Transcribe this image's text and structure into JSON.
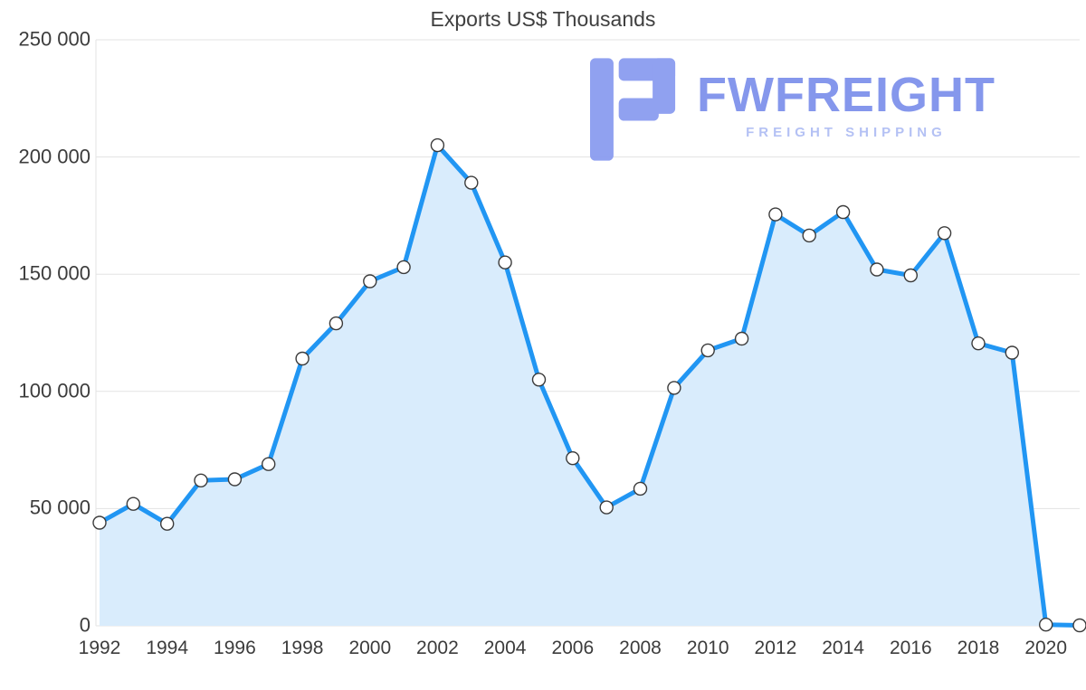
{
  "chart_data": {
    "type": "area",
    "title": "Exports US$ Thousands",
    "series_name": "Exports US$ Thousands",
    "x": [
      1992,
      1993,
      1994,
      1995,
      1996,
      1997,
      1998,
      1999,
      2000,
      2001,
      2002,
      2003,
      2004,
      2005,
      2006,
      2007,
      2008,
      2009,
      2010,
      2011,
      2012,
      2013,
      2014,
      2015,
      2016,
      2017,
      2018,
      2019,
      2020,
      2021
    ],
    "values": [
      44000,
      52000,
      43500,
      62000,
      62500,
      69000,
      114000,
      129000,
      147000,
      153000,
      205000,
      189000,
      155000,
      105000,
      71500,
      50500,
      58500,
      101500,
      117500,
      122500,
      175500,
      166500,
      176500,
      152000,
      149500,
      167500,
      120500,
      116500,
      500,
      200
    ],
    "ylim": [
      0,
      250000
    ],
    "ytick_step": 50000,
    "ytick_labels": [
      "0",
      "50 000",
      "100 000",
      "150 000",
      "200 000",
      "250 000"
    ],
    "xtick_labels": [
      "1992",
      "1994",
      "1996",
      "1998",
      "2000",
      "2002",
      "2004",
      "2006",
      "2008",
      "2010",
      "2012",
      "2014",
      "2016",
      "2018",
      "2020"
    ],
    "grid": "horizontal",
    "legend": "none",
    "marker": "circle",
    "colors": {
      "line": "#2196f3",
      "fill": "#d9ecfc",
      "marker_fill": "#ffffff",
      "marker_stroke": "#3b3b3b",
      "grid": "#e3e3e3",
      "axis_text": "#3c3c3c",
      "title_text": "#3f3f3f"
    }
  },
  "watermark": {
    "brand": "FWFREIGHT",
    "tagline": "FREIGHT SHIPPING",
    "glyph": "fwfreight-logo",
    "brand_color": "#7f92ec",
    "tagline_color": "#b0bef4",
    "glyph_color": "#8b9cf0"
  }
}
